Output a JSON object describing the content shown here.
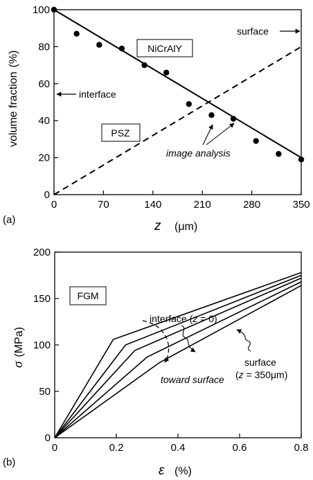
{
  "chart_data": [
    {
      "panel": "(a)",
      "type": "line",
      "xlabel": "z",
      "xunit": "(μm)",
      "ylabel": "volume fraction",
      "yunit": "(%)",
      "xlim": [
        0,
        350
      ],
      "ylim": [
        0,
        100
      ],
      "xticks": [
        "0",
        "70",
        "140",
        "210",
        "280",
        "350"
      ],
      "yticks": [
        "0",
        "20",
        "40",
        "60",
        "80",
        "100"
      ],
      "series": [
        {
          "name": "NiCrAlY",
          "style": "solid",
          "x": [
            0,
            350
          ],
          "y": [
            100,
            20
          ]
        },
        {
          "name": "PSZ",
          "style": "dashed",
          "x": [
            0,
            350
          ],
          "y": [
            0,
            80
          ]
        },
        {
          "name": "image analysis",
          "style": "markers",
          "x": [
            0,
            32,
            64,
            96,
            128,
            159,
            191,
            223,
            254,
            286,
            318,
            350
          ],
          "y": [
            100,
            87,
            81,
            79,
            70,
            66,
            49,
            43,
            41,
            29,
            22,
            19
          ]
        }
      ],
      "annotations": {
        "nicraly": "NiCrAlY",
        "psz": "PSZ",
        "interface": "interface",
        "surface": "surface",
        "image_analysis": "image analysis"
      }
    },
    {
      "panel": "(b)",
      "type": "line",
      "xlabel": "ε",
      "xunit": "(%)",
      "ylabel": "σ",
      "yunit": "(MPa)",
      "xlim": [
        0,
        0.8
      ],
      "ylim": [
        0,
        200
      ],
      "xticks": [
        "0",
        "0.2",
        "0.4",
        "0.6",
        "0.8"
      ],
      "yticks": [
        "0",
        "50",
        "100",
        "150",
        "200"
      ],
      "series": [
        {
          "x": [
            0,
            0.19,
            0.8
          ],
          "y": [
            0,
            106,
            178
          ]
        },
        {
          "x": [
            0,
            0.23,
            0.8
          ],
          "y": [
            0,
            100,
            175
          ]
        },
        {
          "x": [
            0,
            0.26,
            0.8
          ],
          "y": [
            0,
            94,
            172
          ]
        },
        {
          "x": [
            0,
            0.3,
            0.8
          ],
          "y": [
            0,
            87,
            168
          ]
        },
        {
          "x": [
            0,
            0.34,
            0.8
          ],
          "y": [
            0,
            81,
            164
          ]
        }
      ],
      "annotations": {
        "box": "FGM",
        "interface": "interface (",
        "interface_var": "z",
        "interface_rest": " = 0)",
        "surface1": "surface",
        "surface2_open": "(",
        "surface2_var": "z",
        "surface2_rest": " = 350μm)",
        "toward": "toward surface"
      }
    }
  ]
}
